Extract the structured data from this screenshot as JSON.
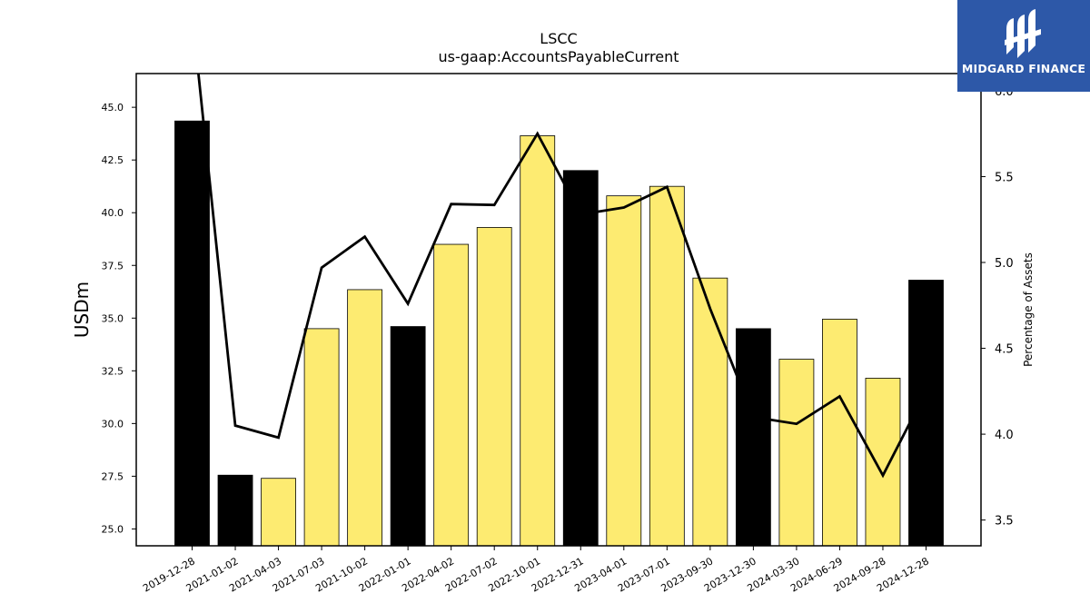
{
  "chart_data": {
    "type": "bar",
    "title": "LSCC",
    "subtitle": "us-gaap:AccountsPayableCurrent",
    "ylabel": "USDm",
    "y2label": "Percentage of Assets",
    "categories": [
      "2019-12-28",
      "2021-01-02",
      "2021-04-03",
      "2021-07-03",
      "2021-10-02",
      "2022-01-01",
      "2022-04-02",
      "2022-07-02",
      "2022-10-01",
      "2022-12-31",
      "2023-04-01",
      "2023-07-01",
      "2023-09-30",
      "2023-12-30",
      "2024-03-30",
      "2024-06-29",
      "2024-09-28",
      "2024-12-28"
    ],
    "series": [
      {
        "values": [
          44.35,
          27.55,
          27.4,
          34.5,
          36.35,
          34.6,
          38.5,
          39.3,
          43.65,
          42.0,
          40.8,
          41.25,
          36.9,
          34.5,
          33.05,
          34.95,
          32.15,
          36.8
        ],
        "annual": [
          true,
          true,
          false,
          false,
          false,
          true,
          false,
          false,
          false,
          true,
          false,
          false,
          false,
          true,
          false,
          false,
          false,
          true
        ]
      },
      {
        "type": "line",
        "axis": "right",
        "values": [
          6.45,
          4.05,
          3.98,
          4.97,
          5.15,
          4.76,
          5.34,
          5.335,
          5.75,
          5.28,
          5.32,
          5.44,
          4.73,
          4.1,
          4.06,
          4.22,
          3.76,
          4.25
        ]
      }
    ],
    "ylim": [
      24.2,
      46.6
    ],
    "y2lim": [
      3.35,
      6.1
    ],
    "yticks": [
      "25.0",
      "27.5",
      "30.0",
      "32.5",
      "35.0",
      "37.5",
      "40.0",
      "42.5",
      "45.0"
    ],
    "y2ticks": [
      "3.5",
      "4.0",
      "4.5",
      "5.0",
      "5.5",
      "6.0"
    ],
    "colors": {
      "annual_bar": "#000000",
      "quarter_bar": "#fdeb71",
      "line": "#000000"
    },
    "grid": false
  },
  "logo": {
    "text": "MIDGARD FINANCE",
    "background": "#2d58a8"
  }
}
